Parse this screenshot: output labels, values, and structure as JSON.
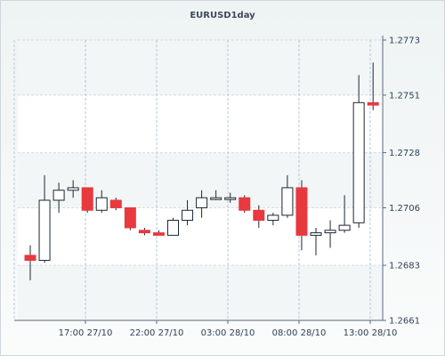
{
  "chart_data": {
    "type": "candlestick",
    "title": "EURUSD1day",
    "xlabel": "",
    "ylabel": "",
    "ylim": [
      1.2661,
      1.2773
    ],
    "grid": true,
    "y_ticks": [
      "1.2773",
      "1.2751",
      "1.2728",
      "1.2706",
      "1.2683",
      "1.2661"
    ],
    "x_ticks": [
      "17:00 27/10",
      "22:00 27/10",
      "03:00 28/10",
      "08:00 28/10",
      "13:00 28/10"
    ],
    "candles": [
      {
        "open": 1.2687,
        "high": 1.2691,
        "low": 1.2677,
        "close": 1.2685
      },
      {
        "open": 1.2685,
        "high": 1.2719,
        "low": 1.2684,
        "close": 1.2709
      },
      {
        "open": 1.2709,
        "high": 1.2716,
        "low": 1.2704,
        "close": 1.2713
      },
      {
        "open": 1.2713,
        "high": 1.2717,
        "low": 1.271,
        "close": 1.2714
      },
      {
        "open": 1.2714,
        "high": 1.2714,
        "low": 1.2704,
        "close": 1.2705
      },
      {
        "open": 1.2705,
        "high": 1.2713,
        "low": 1.2704,
        "close": 1.271
      },
      {
        "open": 1.2709,
        "high": 1.271,
        "low": 1.2705,
        "close": 1.2706
      },
      {
        "open": 1.2706,
        "high": 1.2706,
        "low": 1.2697,
        "close": 1.2698
      },
      {
        "open": 1.2697,
        "high": 1.2698,
        "low": 1.2695,
        "close": 1.2696
      },
      {
        "open": 1.2696,
        "high": 1.2697,
        "low": 1.2695,
        "close": 1.2695
      },
      {
        "open": 1.2695,
        "high": 1.2702,
        "low": 1.2695,
        "close": 1.2701
      },
      {
        "open": 1.2701,
        "high": 1.2709,
        "low": 1.2699,
        "close": 1.2705
      },
      {
        "open": 1.2706,
        "high": 1.2713,
        "low": 1.2702,
        "close": 1.271
      },
      {
        "open": 1.271,
        "high": 1.2713,
        "low": 1.2709,
        "close": 1.271
      },
      {
        "open": 1.271,
        "high": 1.2712,
        "low": 1.2708,
        "close": 1.271
      },
      {
        "open": 1.271,
        "high": 1.2711,
        "low": 1.2704,
        "close": 1.2705
      },
      {
        "open": 1.2705,
        "high": 1.2707,
        "low": 1.2698,
        "close": 1.2701
      },
      {
        "open": 1.2701,
        "high": 1.2704,
        "low": 1.2699,
        "close": 1.2703
      },
      {
        "open": 1.2703,
        "high": 1.2719,
        "low": 1.2702,
        "close": 1.2714
      },
      {
        "open": 1.2714,
        "high": 1.2717,
        "low": 1.2689,
        "close": 1.2695
      },
      {
        "open": 1.2695,
        "high": 1.2698,
        "low": 1.2687,
        "close": 1.2696
      },
      {
        "open": 1.2696,
        "high": 1.2701,
        "low": 1.269,
        "close": 1.2697
      },
      {
        "open": 1.2697,
        "high": 1.2711,
        "low": 1.2696,
        "close": 1.2699
      },
      {
        "open": 1.27,
        "high": 1.2759,
        "low": 1.2698,
        "close": 1.2748
      },
      {
        "open": 1.2748,
        "high": 1.2764,
        "low": 1.2745,
        "close": 1.2747
      }
    ],
    "colors": {
      "up": "#ffffff",
      "down": "#e8393f",
      "wick": "#1d2733",
      "grid_major": "#b7c8d8",
      "grid_minor": "#d3dee2"
    }
  }
}
